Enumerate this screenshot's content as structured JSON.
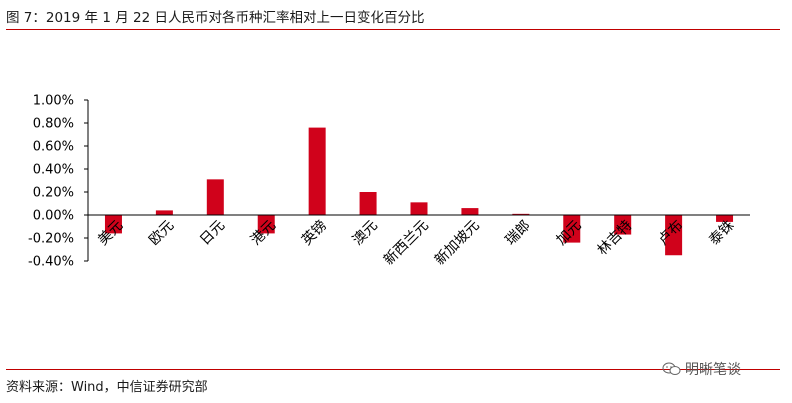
{
  "figure": {
    "title": "图 7：2019 年 1 月 22 日人民币对各币种汇率相对上一日变化百分比",
    "source": "资料来源：Wind，中信证券研究部",
    "watermark": "明晰笔谈"
  },
  "colors": {
    "bar": "#d0021b",
    "rule": "#c00000",
    "axis": "#000000"
  },
  "chart_data": {
    "type": "bar",
    "title": "",
    "xlabel": "",
    "ylabel": "",
    "categories": [
      "美元",
      "欧元",
      "日元",
      "港元",
      "英镑",
      "澳元",
      "新西兰元",
      "新加坡元",
      "瑞郎",
      "加元",
      "林吉特",
      "卢布",
      "泰铢"
    ],
    "values": [
      -0.16,
      0.04,
      0.31,
      -0.16,
      0.76,
      0.2,
      0.11,
      0.06,
      0.01,
      -0.24,
      -0.17,
      -0.35,
      -0.06
    ],
    "ylim": [
      -0.4,
      1.0
    ],
    "yticks": [
      1.0,
      0.8,
      0.6,
      0.4,
      0.2,
      0.0,
      -0.2,
      -0.4
    ],
    "ytick_labels": [
      "1.00%",
      "0.80%",
      "0.60%",
      "0.40%",
      "0.20%",
      "0.00%",
      "-0.20%",
      "-0.40%"
    ],
    "unit": "%",
    "grid": false,
    "legend": "none"
  }
}
